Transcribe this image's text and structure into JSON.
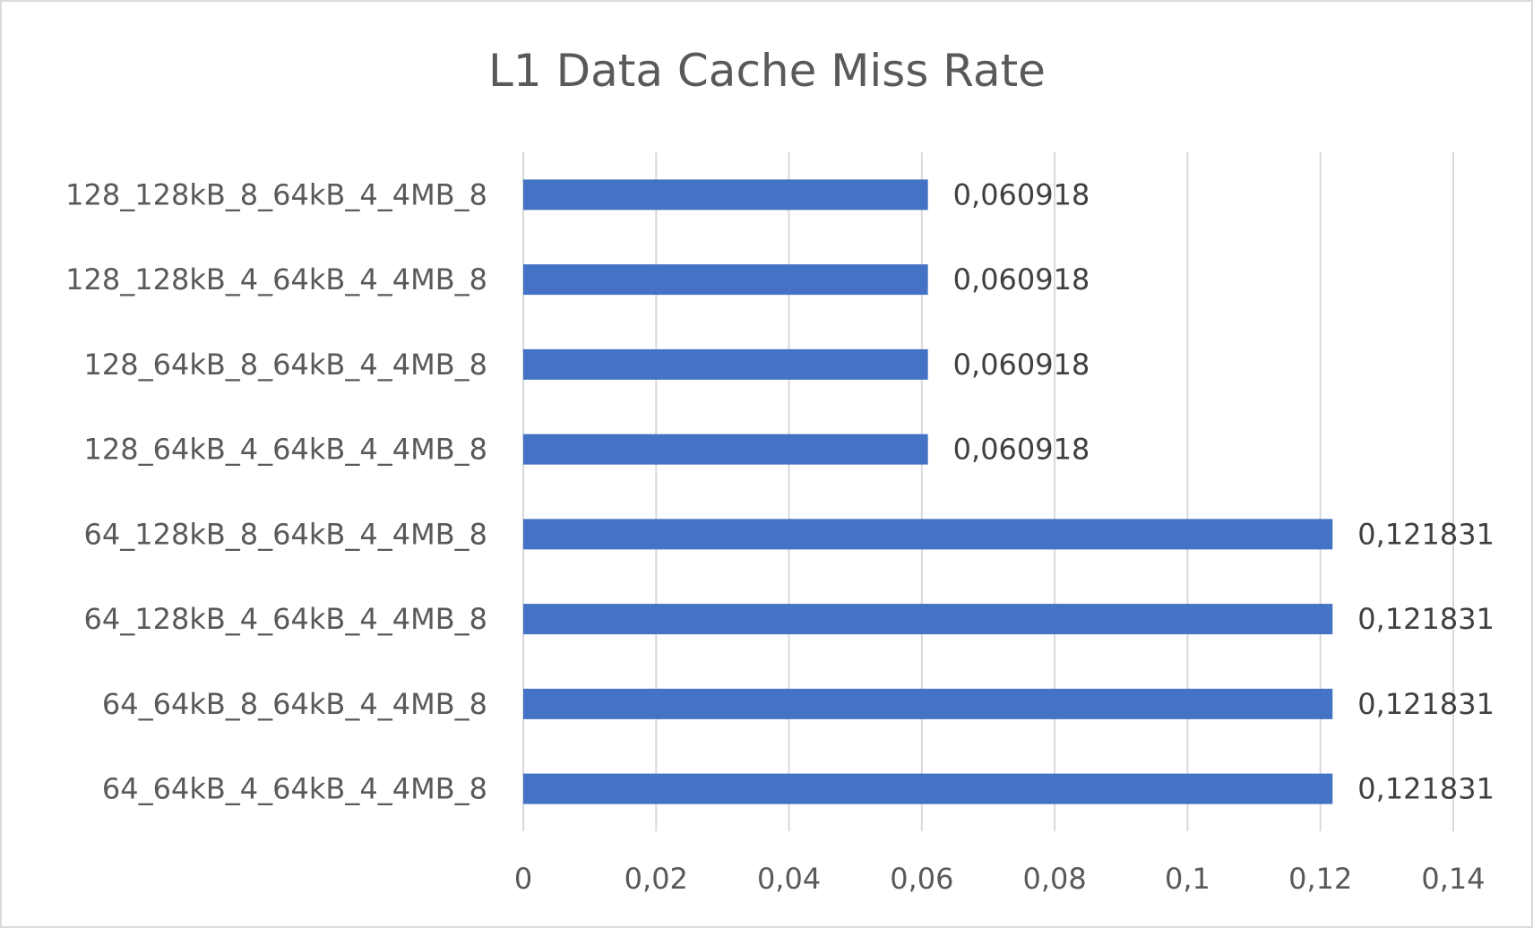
{
  "chart_data": {
    "type": "bar",
    "orientation": "horizontal",
    "title": "L1 Data Cache Miss Rate",
    "xlabel": "",
    "ylabel": "",
    "categories": [
      "64_64kB_4_64kB_4_4MB_8",
      "64_64kB_8_64kB_4_4MB_8",
      "64_128kB_4_64kB_4_4MB_8",
      "64_128kB_8_64kB_4_4MB_8",
      "128_64kB_4_64kB_4_4MB_8",
      "128_64kB_8_64kB_4_4MB_8",
      "128_128kB_4_64kB_4_4MB_8",
      "128_128kB_8_64kB_4_4MB_8"
    ],
    "values": [
      0.121831,
      0.121831,
      0.121831,
      0.121831,
      0.060918,
      0.060918,
      0.060918,
      0.060918
    ],
    "data_labels": [
      "0,121831",
      "0,121831",
      "0,121831",
      "0,121831",
      "0,060918",
      "0,060918",
      "0,060918",
      "0,060918"
    ],
    "xlim": [
      0,
      0.14
    ],
    "ticks": [
      0,
      0.02,
      0.04,
      0.06,
      0.08,
      0.1,
      0.12,
      0.14
    ],
    "tick_labels": [
      "0",
      "0,02",
      "0,04",
      "0,06",
      "0,08",
      "0,1",
      "0,12",
      "0,14"
    ],
    "grid": true,
    "legend": "none",
    "bar_color": "#4472c4",
    "grid_color": "#d9d9d9",
    "text_color": "#595959"
  }
}
